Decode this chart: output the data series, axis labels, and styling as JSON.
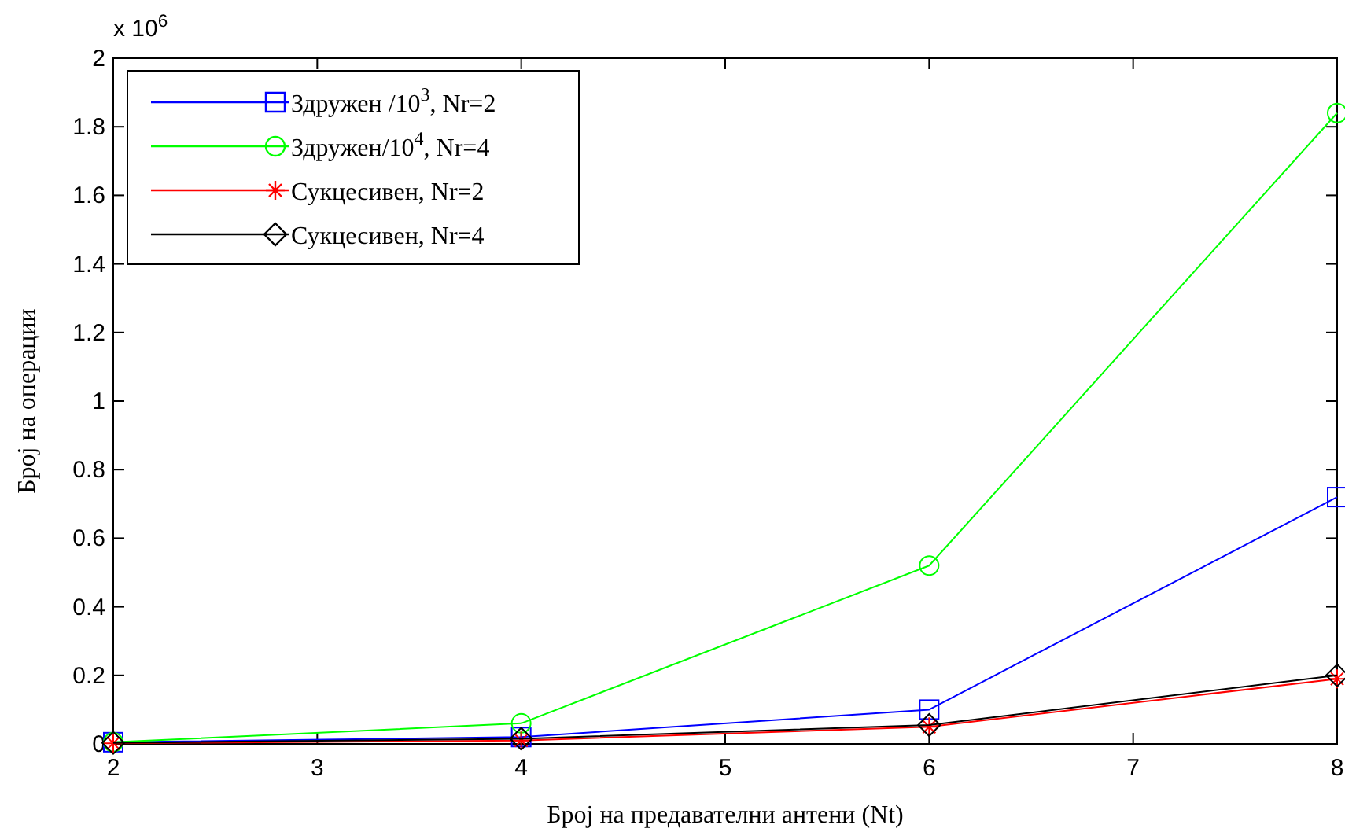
{
  "chart_data": {
    "type": "line",
    "xlabel": "Број на предавателни антени (Nt)",
    "ylabel": "Број на операции",
    "annotations": [
      "x 10$^{6}$"
    ],
    "x": [
      2,
      4,
      6,
      8
    ],
    "xlim": [
      2,
      8
    ],
    "xticks": [
      2,
      3,
      4,
      5,
      6,
      7,
      8
    ],
    "ylim": [
      0,
      2
    ],
    "yticks": [
      0,
      0.2,
      0.4,
      0.6,
      0.8,
      1,
      1.2,
      1.4,
      1.6,
      1.8,
      2
    ],
    "grid": false,
    "legend": "top left",
    "line_style": "solid",
    "series": [
      {
        "name": "Здружен /10$^{3}$, Nr=2",
        "color": "#0000ff",
        "marker": "square",
        "values": [
          0.005,
          0.02,
          0.1,
          0.72
        ]
      },
      {
        "name": "Здружен/10$^{4}$, Nr=4",
        "color": "#00ff00",
        "marker": "circle",
        "values": [
          0.005,
          0.06,
          0.52,
          1.84
        ]
      },
      {
        "name": "Сукцесивен, Nr=2",
        "color": "#ff0000",
        "marker": "cross",
        "values": [
          0.002,
          0.01,
          0.05,
          0.19
        ]
      },
      {
        "name": "Сукцесивен, Nr=4",
        "color": "#000000",
        "marker": "diamond",
        "values": [
          0.003,
          0.015,
          0.055,
          0.2
        ]
      }
    ]
  }
}
